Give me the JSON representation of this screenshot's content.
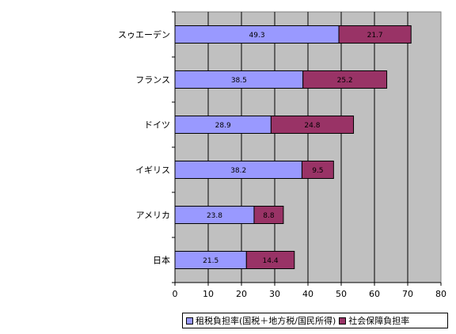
{
  "chart_data": {
    "type": "bar",
    "orientation": "horizontal",
    "stacked": true,
    "categories": [
      "スゥエーデン",
      "フランス",
      "ドイツ",
      "イギリス",
      "アメリカ",
      "日本"
    ],
    "series": [
      {
        "name": "租税負担率(国税＋地方税/国民所得)",
        "values": [
          49.3,
          38.5,
          28.9,
          38.2,
          23.8,
          21.5
        ],
        "color": "#9999ff"
      },
      {
        "name": "社会保障負担率",
        "values": [
          21.7,
          25.2,
          24.8,
          9.5,
          8.8,
          14.4
        ],
        "color": "#993366"
      }
    ],
    "xlim": [
      0,
      80
    ],
    "xticks": [
      0,
      10,
      20,
      30,
      40,
      50,
      60,
      70,
      80
    ],
    "plot_background": "#c0c0c0",
    "grid": "vertical",
    "legend_position": "bottom",
    "title": "",
    "xlabel": "",
    "ylabel": ""
  }
}
